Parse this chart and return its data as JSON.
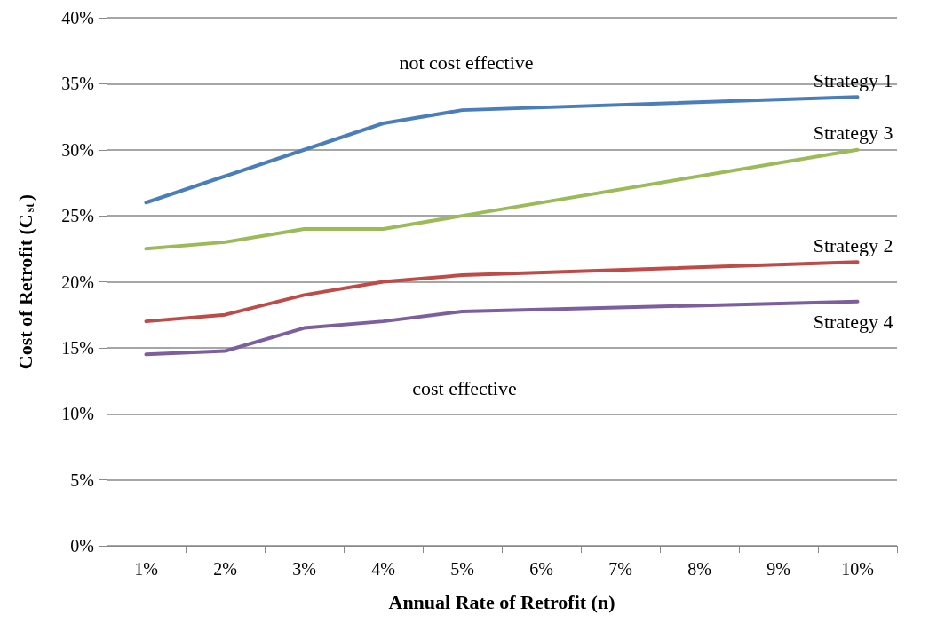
{
  "chart_data": {
    "type": "line",
    "xlabel": "Annual Rate of Retrofit (n)",
    "ylabel": "Cost of Retrofit (C$_{st}$)",
    "categories": [
      "1%",
      "2%",
      "3%",
      "4%",
      "5%",
      "6%",
      "7%",
      "8%",
      "9%",
      "10%"
    ],
    "series": [
      {
        "name": "Strategy 1",
        "color": "#4a7ebb",
        "values": [
          26,
          28,
          30,
          32,
          33,
          null,
          null,
          null,
          null,
          34
        ]
      },
      {
        "name": "Strategy 3",
        "color": "#9bbb59",
        "values": [
          22.5,
          23,
          24,
          24,
          25,
          null,
          null,
          null,
          null,
          30
        ]
      },
      {
        "name": "Strategy 2",
        "color": "#be4b48",
        "values": [
          17,
          17.5,
          19,
          20,
          20.5,
          null,
          null,
          null,
          null,
          21.5
        ]
      },
      {
        "name": "Strategy 4",
        "color": "#7d5fa0",
        "values": [
          14.5,
          14.75,
          16.5,
          17,
          17.75,
          null,
          null,
          null,
          null,
          18.5
        ]
      }
    ],
    "ylim": [
      0,
      40
    ],
    "yticks": [
      {
        "value": 0,
        "label": "0%"
      },
      {
        "value": 5,
        "label": "5%"
      },
      {
        "value": 10,
        "label": "10%"
      },
      {
        "value": 15,
        "label": "15%"
      },
      {
        "value": 20,
        "label": "20%"
      },
      {
        "value": 25,
        "label": "25%"
      },
      {
        "value": 30,
        "label": "30%"
      },
      {
        "value": 35,
        "label": "35%"
      },
      {
        "value": 40,
        "label": "40%"
      }
    ],
    "grid": "y",
    "legend": false,
    "marker": "none",
    "line_style": "solid",
    "annotations": [
      "not cost effective",
      "cost effective"
    ]
  }
}
